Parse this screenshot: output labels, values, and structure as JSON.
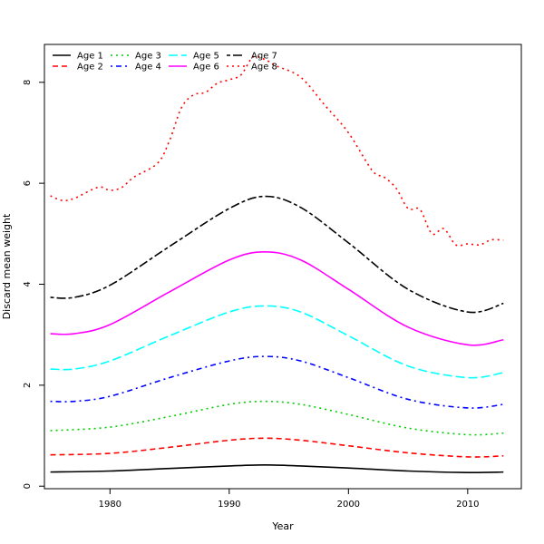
{
  "chart_data": {
    "type": "line",
    "title": "",
    "xlabel": "Year",
    "ylabel": "Discard mean weight",
    "xlim": [
      1974.5,
      2014.5
    ],
    "ylim": [
      -0.05,
      8.75
    ],
    "x_ticks": [
      1980,
      1990,
      2000,
      2010
    ],
    "y_ticks": [
      0,
      2,
      4,
      6,
      8
    ],
    "grid": false,
    "legend_position": "top-left",
    "series": [
      {
        "name": "Age 1",
        "color": "#000000",
        "dash": "solid",
        "x": [
          1975,
          1980,
          1985,
          1990,
          1993,
          1996,
          2000,
          2005,
          2010,
          2013
        ],
        "y": [
          0.28,
          0.3,
          0.35,
          0.4,
          0.42,
          0.4,
          0.36,
          0.3,
          0.27,
          0.28
        ]
      },
      {
        "name": "Age 2",
        "color": "#ff0000",
        "dash": "dashed",
        "x": [
          1975,
          1980,
          1985,
          1990,
          1993,
          1996,
          2000,
          2005,
          2010,
          2013
        ],
        "y": [
          0.62,
          0.65,
          0.77,
          0.91,
          0.95,
          0.91,
          0.8,
          0.66,
          0.58,
          0.6
        ]
      },
      {
        "name": "Age 3",
        "color": "#00cd00",
        "dash": "dotted",
        "x": [
          1975,
          1980,
          1985,
          1990,
          1993,
          1996,
          2000,
          2005,
          2010,
          2013
        ],
        "y": [
          1.1,
          1.17,
          1.38,
          1.62,
          1.68,
          1.62,
          1.42,
          1.15,
          1.02,
          1.05
        ]
      },
      {
        "name": "Age 4",
        "color": "#0000ff",
        "dash": "dotdash",
        "x": [
          1975,
          1977,
          1980,
          1985,
          1990,
          1993,
          1996,
          2000,
          2005,
          2010,
          2013
        ],
        "y": [
          1.68,
          1.68,
          1.78,
          2.15,
          2.48,
          2.57,
          2.48,
          2.15,
          1.72,
          1.55,
          1.62
        ]
      },
      {
        "name": "Age 5",
        "color": "#00ffff",
        "dash": "longdash",
        "x": [
          1975,
          1977,
          1980,
          1985,
          1990,
          1993,
          1996,
          2000,
          2005,
          2010,
          2013
        ],
        "y": [
          2.32,
          2.32,
          2.48,
          2.98,
          3.45,
          3.57,
          3.45,
          2.98,
          2.38,
          2.15,
          2.25
        ]
      },
      {
        "name": "Age 6",
        "color": "#ff00ff",
        "dash": "solid",
        "x": [
          1975,
          1977,
          1980,
          1985,
          1990,
          1993,
          1996,
          2000,
          2005,
          2010,
          2013
        ],
        "y": [
          3.02,
          3.02,
          3.2,
          3.85,
          4.48,
          4.64,
          4.48,
          3.9,
          3.15,
          2.8,
          2.9
        ]
      },
      {
        "name": "Age 7",
        "color": "#000000",
        "dash": "twodash",
        "x": [
          1975,
          1977,
          1980,
          1985,
          1990,
          1993,
          1996,
          2000,
          2005,
          2010,
          2013
        ],
        "y": [
          3.74,
          3.74,
          3.98,
          4.75,
          5.5,
          5.74,
          5.52,
          4.82,
          3.9,
          3.45,
          3.62
        ]
      },
      {
        "name": "Age 8",
        "color": "#ff0000",
        "dash": "dotted",
        "x": [
          1975,
          1976,
          1977,
          1979,
          1980,
          1981,
          1982,
          1984,
          1985,
          1986,
          1987,
          1988,
          1989,
          1990,
          1991,
          1992,
          1993,
          1994,
          1996,
          1998,
          2000,
          2002,
          2003,
          2004,
          2005,
          2006,
          2007,
          2008,
          2009,
          2010,
          2011,
          2012,
          2013
        ],
        "y": [
          5.75,
          5.66,
          5.7,
          5.92,
          5.86,
          5.92,
          6.12,
          6.4,
          6.85,
          7.5,
          7.75,
          7.8,
          7.98,
          8.05,
          8.15,
          8.5,
          8.45,
          8.32,
          8.1,
          7.55,
          7.0,
          6.25,
          6.12,
          5.9,
          5.5,
          5.48,
          5.0,
          5.1,
          4.78,
          4.8,
          4.78,
          4.88,
          4.87
        ]
      }
    ]
  }
}
